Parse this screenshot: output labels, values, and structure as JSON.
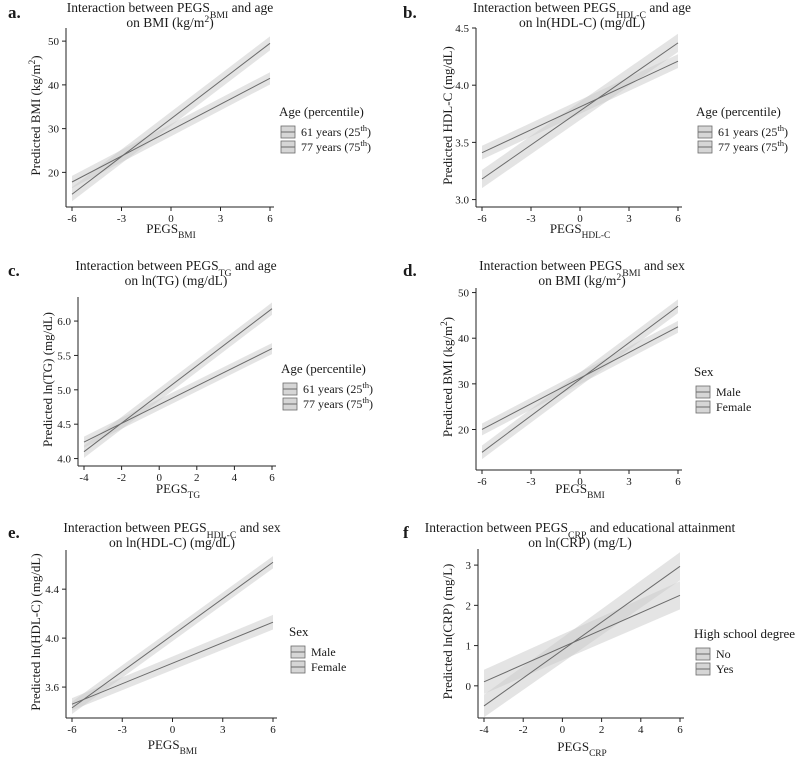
{
  "chart_data": [
    {
      "id": "a",
      "type": "line",
      "panel_label": "a.",
      "title_parts": [
        {
          "t": "Interaction between PEGS",
          "sub": false
        },
        {
          "t": "BMI",
          "sub": true
        },
        {
          "t": " and age",
          "sub": false
        }
      ],
      "title_line2_parts": [
        {
          "t": "on BMI (kg/m",
          "sub": false
        },
        {
          "t": "2",
          "sup": true
        },
        {
          "t": ")",
          "sub": false
        }
      ],
      "xlabel_parts": [
        {
          "t": "PEGS",
          "sub": false
        },
        {
          "t": "BMI",
          "sub": true
        }
      ],
      "ylabel_parts": [
        {
          "t": "Predicted BMI (kg/m",
          "sub": false
        },
        {
          "t": "2",
          "sup": true
        },
        {
          "t": ")",
          "sub": false
        }
      ],
      "xlim": [
        -6,
        6
      ],
      "ylim": [
        13,
        53
      ],
      "xticks": [
        -6,
        -3,
        0,
        3,
        6
      ],
      "xtick_labels": [
        "-6",
        "-3",
        "0",
        "3",
        "6"
      ],
      "yticks": [
        20,
        30,
        40,
        50
      ],
      "ytick_labels": [
        "20",
        "30",
        "40",
        "50"
      ],
      "legend_title": "Age (percentile)",
      "series": [
        {
          "name": "61 years (25th)",
          "label_main": "61 years (25",
          "label_sup": "th",
          "label_end": ")",
          "x": [
            -6,
            6
          ],
          "y": [
            15.0,
            49.5
          ],
          "ci_half": [
            1.6,
            1.6
          ]
        },
        {
          "name": "77 years (75th)",
          "label_main": "77 years (75",
          "label_sup": "th",
          "label_end": ")",
          "x": [
            -6,
            6
          ],
          "y": [
            17.8,
            41.5
          ],
          "ci_half": [
            1.4,
            1.4
          ]
        }
      ]
    },
    {
      "id": "b",
      "type": "line",
      "panel_label": "b.",
      "title_parts": [
        {
          "t": "Interaction between PEGS",
          "sub": false
        },
        {
          "t": "HDL-C",
          "sub": true
        },
        {
          "t": " and age",
          "sub": false
        }
      ],
      "title_line2_parts": [
        {
          "t": "on ln(HDL-C) (mg/dL)",
          "sub": false
        }
      ],
      "xlabel_parts": [
        {
          "t": "PEGS",
          "sub": false
        },
        {
          "t": "HDL-C",
          "sub": true
        }
      ],
      "ylabel_parts": [
        {
          "t": "Predicted HDL-C (mg/dL)",
          "sub": false
        }
      ],
      "xlim": [
        -6,
        6
      ],
      "ylim": [
        2.97,
        4.5
      ],
      "xticks": [
        -6,
        -3,
        0,
        3,
        6
      ],
      "xtick_labels": [
        "-6",
        "-3",
        "0",
        "3",
        "6"
      ],
      "yticks": [
        3.0,
        3.5,
        4.0,
        4.5
      ],
      "ytick_labels": [
        "3.0",
        "3.5",
        "4.0",
        "4.5"
      ],
      "legend_title": "Age (percentile)",
      "series": [
        {
          "name": "61 years (25th)",
          "label_main": "61 years (25",
          "label_sup": "th",
          "label_end": ")",
          "x": [
            -6,
            6
          ],
          "y": [
            3.18,
            4.37
          ],
          "ci_half": [
            0.08,
            0.08
          ]
        },
        {
          "name": "77 years (75th)",
          "label_main": "77 years (75",
          "label_sup": "th",
          "label_end": ")",
          "x": [
            -6,
            6
          ],
          "y": [
            3.41,
            4.21
          ],
          "ci_half": [
            0.06,
            0.06
          ]
        }
      ]
    },
    {
      "id": "c",
      "type": "line",
      "panel_label": "c.",
      "title_parts": [
        {
          "t": "Interaction between PEGS",
          "sub": false
        },
        {
          "t": "TG",
          "sub": true
        },
        {
          "t": " and age",
          "sub": false
        }
      ],
      "title_line2_parts": [
        {
          "t": "on ln(TG) (mg/dL)",
          "sub": false
        }
      ],
      "xlabel_parts": [
        {
          "t": "PEGS",
          "sub": false
        },
        {
          "t": "TG",
          "sub": true
        }
      ],
      "ylabel_parts": [
        {
          "t": "Predicted ln(TG) (mg/dL)",
          "sub": false
        }
      ],
      "xlim": [
        -4,
        6
      ],
      "ylim": [
        3.95,
        6.35
      ],
      "xticks": [
        -4,
        -2,
        0,
        2,
        4,
        6
      ],
      "xtick_labels": [
        "-4",
        "-2",
        "0",
        "2",
        "4",
        "6"
      ],
      "yticks": [
        4.0,
        4.5,
        5.0,
        5.5,
        6.0
      ],
      "ytick_labels": [
        "4.0",
        "4.5",
        "5.0",
        "5.5",
        "6.0"
      ],
      "legend_title": "Age (percentile)",
      "series": [
        {
          "name": "61 years (25th)",
          "label_main": "61 years (25",
          "label_sup": "th",
          "label_end": ")",
          "x": [
            -4,
            6
          ],
          "y": [
            4.1,
            6.18
          ],
          "ci_half": [
            0.09,
            0.09
          ]
        },
        {
          "name": "77 years (75th)",
          "label_main": "77 years (75",
          "label_sup": "th",
          "label_end": ")",
          "x": [
            -4,
            6
          ],
          "y": [
            4.24,
            5.6
          ],
          "ci_half": [
            0.08,
            0.08
          ]
        }
      ]
    },
    {
      "id": "d",
      "type": "line",
      "panel_label": "d.",
      "title_parts": [
        {
          "t": "Interaction between PEGS",
          "sub": false
        },
        {
          "t": "BMI",
          "sub": true
        },
        {
          "t": " and sex",
          "sub": false
        }
      ],
      "title_line2_parts": [
        {
          "t": "on BMI (kg/m",
          "sub": false
        },
        {
          "t": "2",
          "sup": true
        },
        {
          "t": ")",
          "sub": false
        }
      ],
      "xlabel_parts": [
        {
          "t": "PEGS",
          "sub": false
        },
        {
          "t": "BMI",
          "sub": true
        }
      ],
      "ylabel_parts": [
        {
          "t": "Predicted BMI (kg/m",
          "sub": false
        },
        {
          "t": "2",
          "sup": true
        },
        {
          "t": ")",
          "sub": false
        }
      ],
      "xlim": [
        -6,
        6
      ],
      "ylim": [
        12,
        51
      ],
      "xticks": [
        -6,
        -3,
        0,
        3,
        6
      ],
      "xtick_labels": [
        "-6",
        "-3",
        "0",
        "3",
        "6"
      ],
      "yticks": [
        20,
        30,
        40,
        50
      ],
      "ytick_labels": [
        "20",
        "30",
        "40",
        "50"
      ],
      "legend_title": "Sex",
      "series": [
        {
          "name": "Male",
          "label_main": "Male",
          "label_sup": "",
          "label_end": "",
          "x": [
            -6,
            6
          ],
          "y": [
            15.0,
            47.0
          ],
          "ci_half": [
            1.5,
            1.5
          ]
        },
        {
          "name": "Female",
          "label_main": "Female",
          "label_sup": "",
          "label_end": "",
          "x": [
            -6,
            6
          ],
          "y": [
            20.0,
            42.5
          ],
          "ci_half": [
            1.3,
            1.3
          ]
        }
      ]
    },
    {
      "id": "e",
      "type": "line",
      "panel_label": "e.",
      "title_parts": [
        {
          "t": "Interaction between PEGS",
          "sub": false
        },
        {
          "t": "HDL-C",
          "sub": true
        },
        {
          "t": " and sex",
          "sub": false
        }
      ],
      "title_line2_parts": [
        {
          "t": "on ln(HDL-C) (mg/dL)",
          "sub": false
        }
      ],
      "xlabel_parts": [
        {
          "t": "PEGS",
          "sub": false
        },
        {
          "t": "BMI",
          "sub": true
        }
      ],
      "ylabel_parts": [
        {
          "t": "Predicted ln(HDL-C) (mg/dL)",
          "sub": false
        }
      ],
      "xlim": [
        -6,
        6
      ],
      "ylim": [
        3.38,
        4.72
      ],
      "xticks": [
        -6,
        -3,
        0,
        3,
        6
      ],
      "xtick_labels": [
        "-6",
        "-3",
        "0",
        "3",
        "6"
      ],
      "yticks": [
        3.6,
        4.0,
        4.4
      ],
      "ytick_labels": [
        "3.6",
        "4.0",
        "4.4"
      ],
      "legend_title": "Sex",
      "series": [
        {
          "name": "Male",
          "label_main": "Male",
          "label_sup": "",
          "label_end": "",
          "x": [
            -6,
            6
          ],
          "y": [
            3.43,
            4.62
          ],
          "ci_half": [
            0.05,
            0.05
          ]
        },
        {
          "name": "Female",
          "label_main": "Female",
          "label_sup": "",
          "label_end": "",
          "x": [
            -6,
            6
          ],
          "y": [
            3.46,
            4.13
          ],
          "ci_half": [
            0.05,
            0.06
          ]
        }
      ]
    },
    {
      "id": "f",
      "type": "line",
      "panel_label": "f",
      "title_parts": [
        {
          "t": "Interaction between PEGS",
          "sub": false
        },
        {
          "t": "CRP",
          "sub": true
        },
        {
          "t": " and educational attainment",
          "sub": false
        }
      ],
      "title_line2_parts": [
        {
          "t": "on ln(CRP) (mg/L)",
          "sub": false
        }
      ],
      "xlabel_parts": [
        {
          "t": "PEGS",
          "sub": false
        },
        {
          "t": "CRP",
          "sub": true
        }
      ],
      "ylabel_parts": [
        {
          "t": "Predicted ln(CRP) (mg/L)",
          "sub": false
        }
      ],
      "xlim": [
        -4,
        6
      ],
      "ylim": [
        -0.7,
        3.4
      ],
      "xticks": [
        -4,
        -2,
        0,
        2,
        4,
        6
      ],
      "xtick_labels": [
        "-4",
        "-2",
        "0",
        "2",
        "4",
        "6"
      ],
      "yticks": [
        0,
        1,
        2,
        3
      ],
      "ytick_labels": [
        "0",
        "1",
        "2",
        "3"
      ],
      "legend_title": "High school degree",
      "series": [
        {
          "name": "No",
          "label_main": "No",
          "label_sup": "",
          "label_end": "",
          "x": [
            -4,
            6
          ],
          "y": [
            -0.5,
            2.97
          ],
          "ci_half": [
            0.28,
            0.35
          ]
        },
        {
          "name": "Yes",
          "label_main": "Yes",
          "label_sup": "",
          "label_end": "",
          "x": [
            -4,
            6
          ],
          "y": [
            0.1,
            2.25
          ],
          "ci_half": [
            0.3,
            0.35
          ]
        }
      ]
    }
  ]
}
